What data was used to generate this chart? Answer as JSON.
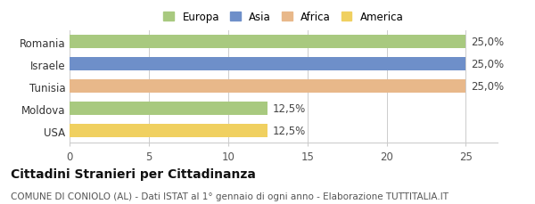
{
  "categories": [
    "USA",
    "Moldova",
    "Tunisia",
    "Israele",
    "Romania"
  ],
  "values": [
    12.5,
    12.5,
    25.0,
    25.0,
    25.0
  ],
  "bar_colors": [
    "#f0d060",
    "#a8c97f",
    "#e8b88a",
    "#6e8fc9",
    "#a8c97f"
  ],
  "value_labels": [
    "12,5%",
    "12,5%",
    "25,0%",
    "25,0%",
    "25,0%"
  ],
  "continent_colors": {
    "Europa": "#a8c97f",
    "Asia": "#6e8fc9",
    "Africa": "#e8b88a",
    "America": "#f0d060"
  },
  "legend_labels": [
    "Europa",
    "Asia",
    "Africa",
    "America"
  ],
  "xlim": [
    0,
    27
  ],
  "xticks": [
    0,
    5,
    10,
    15,
    20,
    25
  ],
  "title": "Cittadini Stranieri per Cittadinanza",
  "subtitle": "COMUNE DI CONIOLO (AL) - Dati ISTAT al 1° gennaio di ogni anno - Elaborazione TUTTITALIA.IT",
  "title_fontsize": 10,
  "subtitle_fontsize": 7.5,
  "tick_fontsize": 8.5,
  "label_fontsize": 8.5,
  "value_fontsize": 8.5,
  "background_color": "#ffffff"
}
